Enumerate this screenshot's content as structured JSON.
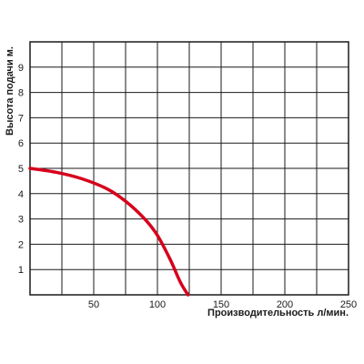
{
  "chart_data": {
    "type": "line",
    "title": "",
    "xlabel": "Производительность л/мин.",
    "ylabel": "Высота подачи м.",
    "xlim": [
      0,
      250
    ],
    "ylim": [
      0,
      10
    ],
    "x_ticks": [
      50,
      100,
      150,
      200,
      250
    ],
    "x_tick_labels": [
      "50",
      "100",
      "150",
      "200",
      "250"
    ],
    "y_ticks": [
      1,
      2,
      3,
      4,
      5,
      6,
      7,
      8,
      9
    ],
    "y_tick_labels": [
      "1",
      "2",
      "3",
      "4",
      "5",
      "6",
      "7",
      "8",
      "9"
    ],
    "x_grid_step": 25,
    "y_grid_step": 1,
    "grid": true,
    "series": [
      {
        "color": "#d6001c",
        "x": [
          0,
          20,
          40,
          60,
          75,
          90,
          100,
          110,
          118,
          124
        ],
        "y": [
          5.0,
          4.85,
          4.6,
          4.2,
          3.7,
          3.0,
          2.35,
          1.4,
          0.5,
          0.0
        ]
      }
    ]
  }
}
